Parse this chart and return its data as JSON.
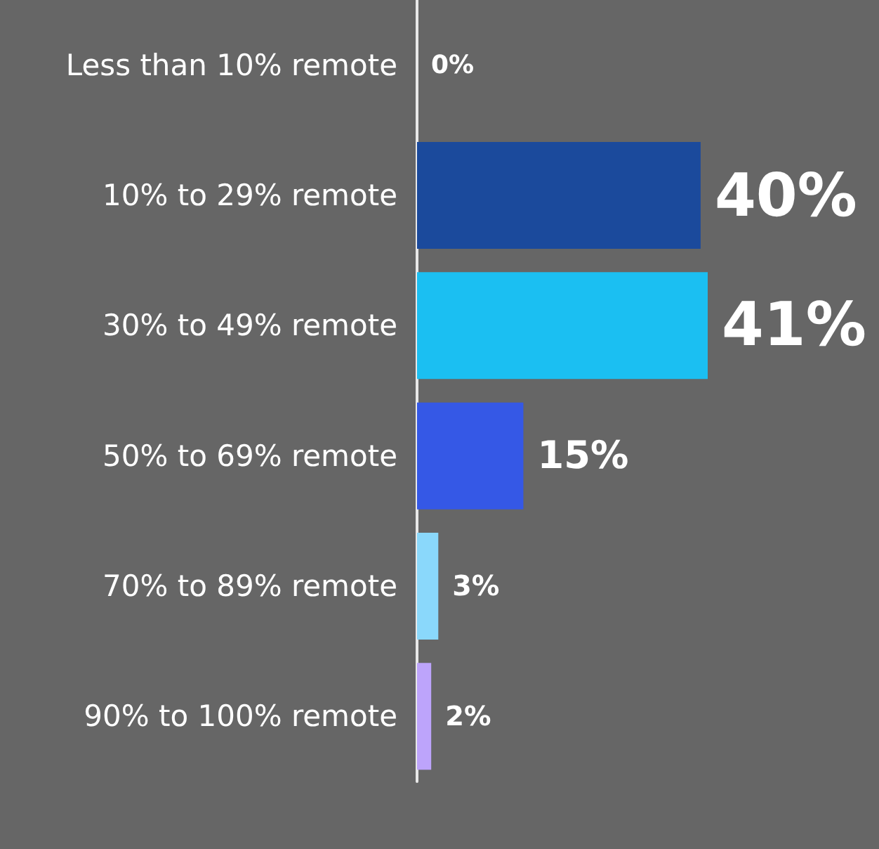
{
  "chart_data": {
    "type": "bar",
    "orientation": "horizontal",
    "categories": [
      "Less than 10% remote",
      "10% to 29% remote",
      "30% to 49% remote",
      "50% to 69% remote",
      "70% to 89% remote",
      "90% to 100% remote"
    ],
    "values": [
      0,
      40,
      41,
      15,
      3,
      2
    ],
    "colors": [
      "#1b4a9c",
      "#1b4a9c",
      "#1bbff2",
      "#3558e6",
      "#8ad8fb",
      "#bda4fb"
    ],
    "value_labels": [
      "0%",
      "40%",
      "41%",
      "15%",
      "3%",
      "2%"
    ]
  }
}
